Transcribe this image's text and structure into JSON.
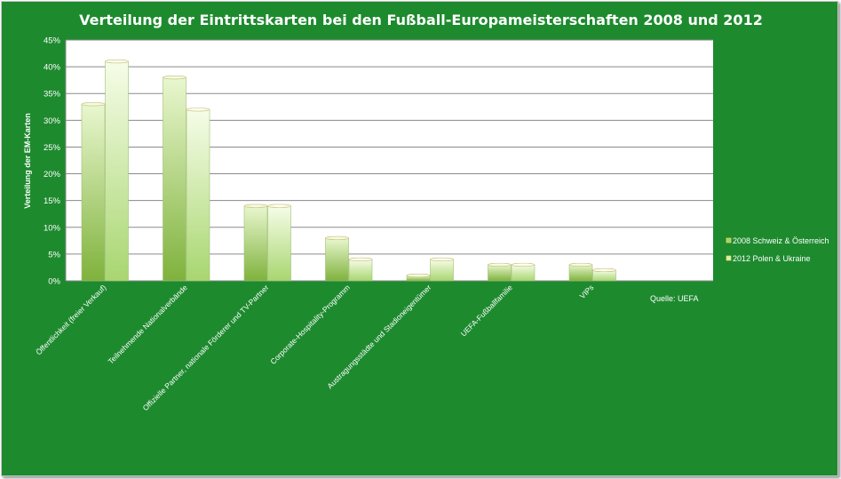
{
  "chart_data": {
    "type": "bar",
    "title": "Verteilung der Eintrittskarten bei den Fußball-Europameisterschaften 2008 und 2012",
    "ylabel": "Verteilung der EM-Karten",
    "xlabel": "",
    "ylim": [
      0,
      45
    ],
    "yticks": [
      "0%",
      "5%",
      "10%",
      "15%",
      "20%",
      "25%",
      "30%",
      "35%",
      "40%",
      "45%"
    ],
    "categories": [
      "Öffentlichkeit (freier Verkauf)",
      "Teilnehmende Nationalverbände",
      "Offizielle Partner, nationale Förderer und TV-Partner",
      "Corporate-Hospitality-Programm",
      "Austragungsstädte und Stadioneigentümer",
      "UEFA-Fußballfamilie",
      "VIPs"
    ],
    "series": [
      {
        "name": "2008 Schweiz & Österreich",
        "values": [
          33,
          38,
          14,
          8,
          1,
          3,
          3
        ]
      },
      {
        "name": "2012 Polen & Ukraine",
        "values": [
          41,
          32,
          14,
          4,
          4,
          3,
          2
        ]
      }
    ],
    "grid": true,
    "legend": "right",
    "source": "Quelle: UEFA",
    "colors": {
      "background": "#1d8a2e",
      "plot": "#ffffff",
      "series_2008": "#a6d264",
      "series_2012": "#d6f2ad"
    }
  }
}
